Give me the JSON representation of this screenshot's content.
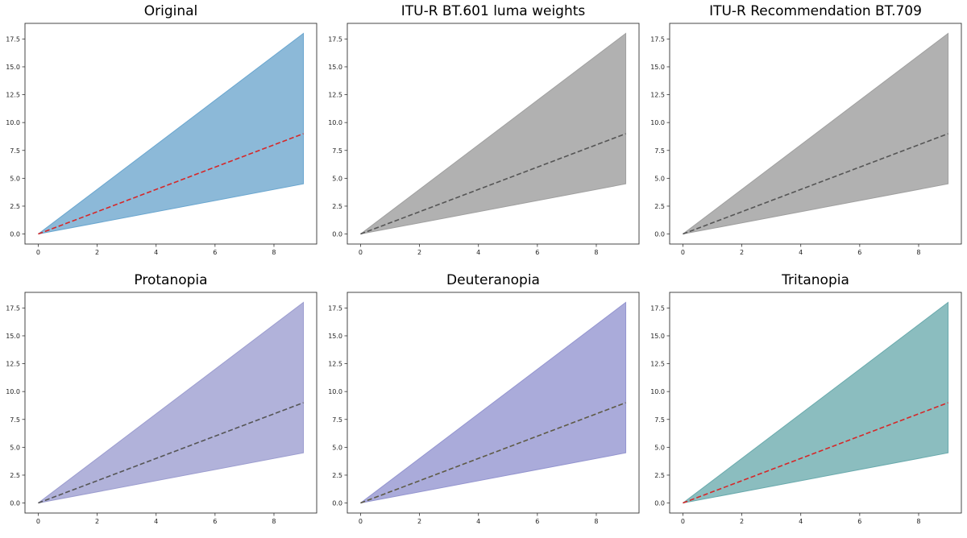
{
  "chart_data": [
    {
      "type": "area",
      "title": "Original",
      "fill_color": "#8cb9d8",
      "fill_edge": "#6aa6cf",
      "line_color": "#d62728",
      "x_ticks": [
        "0",
        "2",
        "4",
        "6",
        "8"
      ],
      "y_ticks": [
        "0.0",
        "2.5",
        "5.0",
        "7.5",
        "10.0",
        "12.5",
        "15.0",
        "17.5"
      ],
      "xlim": [
        -0.45,
        9.45
      ],
      "ylim": [
        -0.9,
        18.9
      ],
      "x": [
        0,
        9
      ],
      "band_lower": [
        0,
        4.5
      ],
      "band_upper": [
        0,
        18
      ],
      "center_line": [
        0,
        9
      ],
      "line_style": "dashed"
    },
    {
      "type": "area",
      "title": "ITU-R BT.601 luma weights",
      "fill_color": "#b1b1b1",
      "fill_edge": "#a0a0a0",
      "line_color": "#555555",
      "x_ticks": [
        "0",
        "2",
        "4",
        "6",
        "8"
      ],
      "y_ticks": [
        "0.0",
        "2.5",
        "5.0",
        "7.5",
        "10.0",
        "12.5",
        "15.0",
        "17.5"
      ],
      "xlim": [
        -0.45,
        9.45
      ],
      "ylim": [
        -0.9,
        18.9
      ],
      "x": [
        0,
        9
      ],
      "band_lower": [
        0,
        4.5
      ],
      "band_upper": [
        0,
        18
      ],
      "center_line": [
        0,
        9
      ],
      "line_style": "dashed"
    },
    {
      "type": "area",
      "title": "ITU-R Recommendation BT.709",
      "fill_color": "#b1b1b1",
      "fill_edge": "#a0a0a0",
      "line_color": "#555555",
      "x_ticks": [
        "0",
        "2",
        "4",
        "6",
        "8"
      ],
      "y_ticks": [
        "0.0",
        "2.5",
        "5.0",
        "7.5",
        "10.0",
        "12.5",
        "15.0",
        "17.5"
      ],
      "xlim": [
        -0.45,
        9.45
      ],
      "ylim": [
        -0.9,
        18.9
      ],
      "x": [
        0,
        9
      ],
      "band_lower": [
        0,
        4.5
      ],
      "band_upper": [
        0,
        18
      ],
      "center_line": [
        0,
        9
      ],
      "line_style": "dashed"
    },
    {
      "type": "area",
      "title": "Protanopia",
      "fill_color": "#b1b2da",
      "fill_edge": "#9c9dcf",
      "line_color": "#555555",
      "x_ticks": [
        "0",
        "2",
        "4",
        "6",
        "8"
      ],
      "y_ticks": [
        "0.0",
        "2.5",
        "5.0",
        "7.5",
        "10.0",
        "12.5",
        "15.0",
        "17.5"
      ],
      "xlim": [
        -0.45,
        9.45
      ],
      "ylim": [
        -0.9,
        18.9
      ],
      "x": [
        0,
        9
      ],
      "band_lower": [
        0,
        4.5
      ],
      "band_upper": [
        0,
        18
      ],
      "center_line": [
        0,
        9
      ],
      "line_style": "dashed"
    },
    {
      "type": "area",
      "title": "Deuteranopia",
      "fill_color": "#aaabda",
      "fill_edge": "#9495cf",
      "line_color": "#5e5a45",
      "x_ticks": [
        "0",
        "2",
        "4",
        "6",
        "8"
      ],
      "y_ticks": [
        "0.0",
        "2.5",
        "5.0",
        "7.5",
        "10.0",
        "12.5",
        "15.0",
        "17.5"
      ],
      "xlim": [
        -0.45,
        9.45
      ],
      "ylim": [
        -0.9,
        18.9
      ],
      "x": [
        0,
        9
      ],
      "band_lower": [
        0,
        4.5
      ],
      "band_upper": [
        0,
        18
      ],
      "center_line": [
        0,
        9
      ],
      "line_style": "dashed"
    },
    {
      "type": "area",
      "title": "Tritanopia",
      "fill_color": "#8bbdbf",
      "fill_edge": "#6aaaad",
      "line_color": "#d62728",
      "x_ticks": [
        "0",
        "2",
        "4",
        "6",
        "8"
      ],
      "y_ticks": [
        "0.0",
        "2.5",
        "5.0",
        "7.5",
        "10.0",
        "12.5",
        "15.0",
        "17.5"
      ],
      "xlim": [
        -0.45,
        9.45
      ],
      "ylim": [
        -0.9,
        18.9
      ],
      "x": [
        0,
        9
      ],
      "band_lower": [
        0,
        4.5
      ],
      "band_upper": [
        0,
        18
      ],
      "center_line": [
        0,
        9
      ],
      "line_style": "dashed"
    }
  ]
}
